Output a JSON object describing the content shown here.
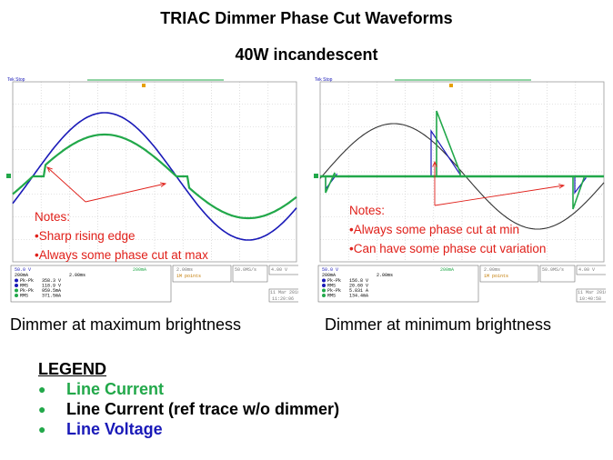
{
  "title": "TRIAC Dimmer Phase Cut Waveforms",
  "subtitle": "40W incandescent",
  "left_scope": {
    "notes_heading": "Notes:",
    "notes": [
      "Sharp rising edge",
      "Always some phase cut at max"
    ],
    "caption": "Dimmer at maximum brightness",
    "readout": {
      "brand": "Tek",
      "status": "Stop",
      "ch1": "50.0 V",
      "ch2": "200mA",
      "timebase": "2.00ms",
      "ch4": "200mA",
      "rate": "50.0MS/s",
      "record": "1M points",
      "trigger": "4.00 V",
      "date": "11 Mar 2010",
      "time": "11:20:06",
      "meas": [
        {
          "ch": "1",
          "name": "Pk-Pk",
          "value": "358.3 V"
        },
        {
          "ch": "1",
          "name": "RMS",
          "value": "118.9 V"
        },
        {
          "ch": "4",
          "name": "Pk-Pk",
          "value": "959.5mA"
        },
        {
          "ch": "4",
          "name": "RMS",
          "value": "371.5mA"
        }
      ]
    }
  },
  "right_scope": {
    "notes_heading": "Notes:",
    "notes": [
      "Always some phase cut at min",
      "Can have some phase cut variation"
    ],
    "caption": "Dimmer at minimum brightness",
    "readout": {
      "brand": "Tek",
      "status": "Stop",
      "ch1": "50.0 V",
      "ch2": "200mA",
      "timebase": "2.00ms",
      "ch4": "200mA",
      "rate": "50.0MS/s",
      "record": "1M points",
      "trigger": "4.00 V",
      "date": "11 Mar 2010",
      "time": "10:40:58",
      "meas": [
        {
          "ch": "1",
          "name": "Pk-Pk",
          "value": "156.8 V"
        },
        {
          "ch": "1",
          "name": "RMS",
          "value": "20.60 V"
        },
        {
          "ch": "4",
          "name": "Pk-Pk",
          "value": "5.831 A"
        },
        {
          "ch": "4",
          "name": "RMS",
          "value": "134.4mA"
        }
      ]
    }
  },
  "legend": {
    "heading": "LEGEND",
    "items": [
      {
        "label": "Line Current",
        "color": "#22a84a"
      },
      {
        "label": "Line Current (ref trace w/o dimmer)",
        "color": "#000000"
      },
      {
        "label": "Line Voltage",
        "color": "#1a1ab8"
      }
    ]
  },
  "colors": {
    "voltage": "#1a1ab8",
    "current": "#22a84a",
    "reference": "#333333",
    "annotation": "#e0201a"
  }
}
